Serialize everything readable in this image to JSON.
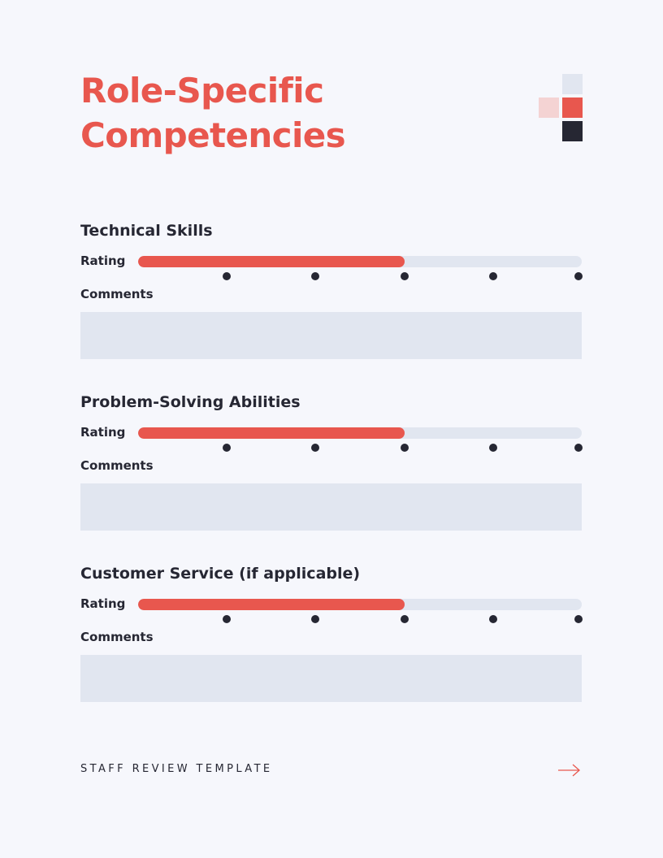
{
  "page": {
    "title_lines": [
      "Role-Specific",
      "Competencies"
    ],
    "footer_text": "STAFF REVIEW TEMPLATE",
    "colors": {
      "accent": "#e8574e",
      "accent_light": "#f4d3d3",
      "dark": "#262733",
      "muted": "#e1e6f0",
      "background": "#f6f7fc"
    }
  },
  "sections": [
    {
      "title": "Technical Skills",
      "rating_label": "Rating",
      "comments_label": "Comments",
      "rating_fraction": 0.6,
      "scale_points": 5
    },
    {
      "title": "Problem-Solving Abilities",
      "rating_label": "Rating",
      "comments_label": "Comments",
      "rating_fraction": 0.6,
      "scale_points": 5
    },
    {
      "title": "Customer Service (if applicable)",
      "rating_label": "Rating",
      "comments_label": "Comments",
      "rating_fraction": 0.6,
      "scale_points": 5
    }
  ],
  "icons": {
    "decoration": "color-squares-decoration",
    "footer_arrow": "arrow-right-icon"
  }
}
